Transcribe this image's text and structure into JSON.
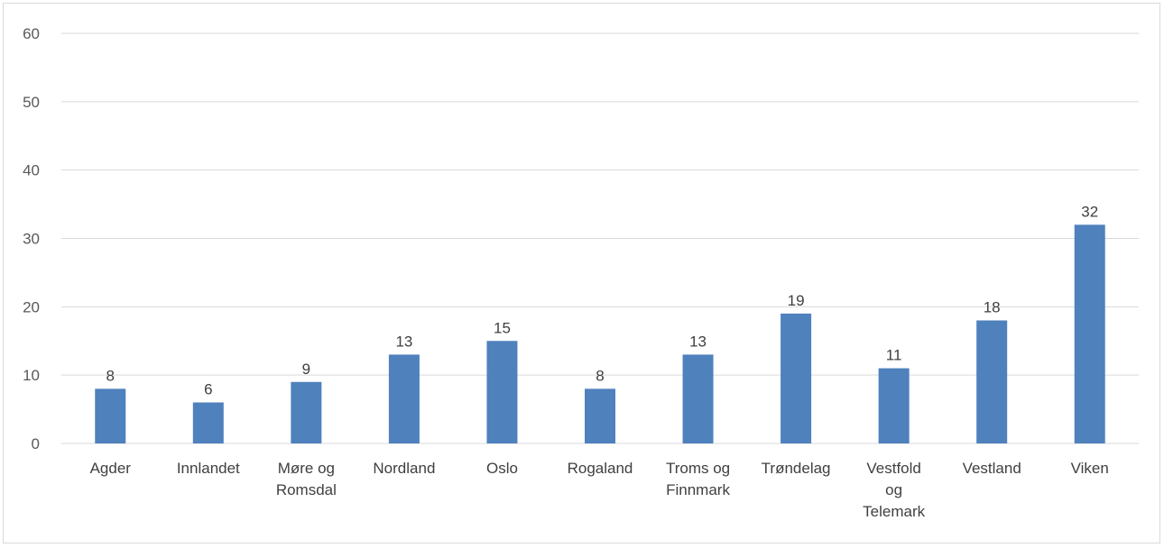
{
  "chart_data": {
    "type": "bar",
    "title": "",
    "xlabel": "",
    "ylabel": "",
    "ylim": [
      0,
      60
    ],
    "yticks": [
      0,
      10,
      20,
      30,
      40,
      50,
      60
    ],
    "grid": true,
    "legend": "none",
    "categories": [
      [
        "Agder"
      ],
      [
        "Innlandet"
      ],
      [
        "Møre og",
        "Romsdal"
      ],
      [
        "Nordland"
      ],
      [
        "Oslo"
      ],
      [
        "Rogaland"
      ],
      [
        "Troms og",
        "Finnmark"
      ],
      [
        "Trøndelag"
      ],
      [
        "Vestfold",
        "og",
        "Telemark"
      ],
      [
        "Vestland"
      ],
      [
        "Viken"
      ]
    ],
    "series": [
      {
        "values": [
          8,
          6,
          9,
          13,
          15,
          8,
          13,
          19,
          11,
          18,
          32
        ],
        "color": "#4f81bd"
      }
    ],
    "colors": {
      "grid": "#d9d9d9",
      "axis": "#d9d9d9",
      "text": "#595959"
    }
  }
}
